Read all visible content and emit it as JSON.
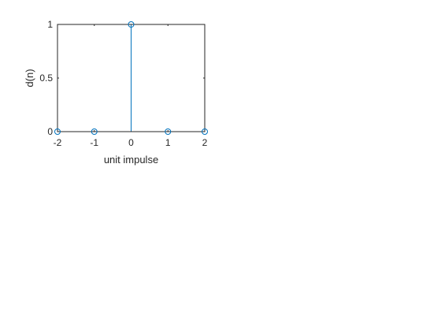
{
  "chart_data": {
    "type": "stem",
    "x": [
      -2,
      -1,
      0,
      1,
      2
    ],
    "y": [
      0,
      0,
      1,
      0,
      0
    ],
    "xlim": [
      -2,
      2
    ],
    "ylim": [
      0,
      1
    ],
    "xticks": [
      "-2",
      "-1",
      "0",
      "1",
      "2"
    ],
    "yticks": [
      "0",
      "0.5",
      "1"
    ],
    "xlabel": "unit impulse",
    "ylabel": "d(n)",
    "grid": false,
    "line_color": "#0072BD",
    "axis_color": "#262626"
  }
}
